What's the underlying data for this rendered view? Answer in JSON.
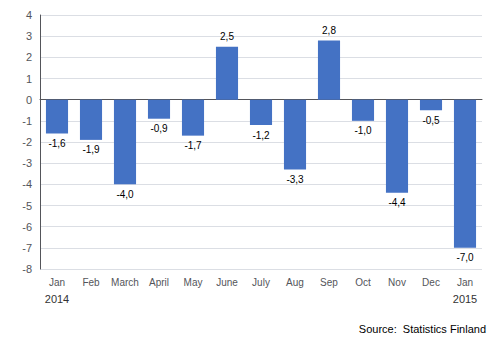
{
  "chart_data": {
    "type": "bar",
    "categories": [
      "Jan",
      "Feb",
      "March",
      "April",
      "May",
      "June",
      "July",
      "Aug",
      "Sep",
      "Oct",
      "Nov",
      "Dec",
      "Jan"
    ],
    "values": [
      -1.6,
      -1.9,
      -4.0,
      -0.9,
      -1.7,
      2.5,
      -1.2,
      -3.3,
      2.8,
      -1.0,
      -4.4,
      -0.5,
      -7.0
    ],
    "value_labels": [
      "-1,6",
      "-1,9",
      "-4,0",
      "-0,9",
      "-1,7",
      "2,5",
      "-1,2",
      "-3,3",
      "2,8",
      "-1,0",
      "-4,4",
      "-0,5",
      "-7,0"
    ],
    "data_labels": true,
    "color": "#4472C4",
    "ylim": [
      -8,
      4
    ],
    "yticks": [
      -8,
      -7,
      -6,
      -5,
      -4,
      -3,
      -2,
      -1,
      0,
      1,
      2,
      3,
      4
    ],
    "grid": true,
    "annotations": [
      {
        "text": "2014",
        "x": 0
      },
      {
        "text": "2015",
        "x": 12
      }
    ],
    "source": "Source:  Statistics Finland"
  }
}
